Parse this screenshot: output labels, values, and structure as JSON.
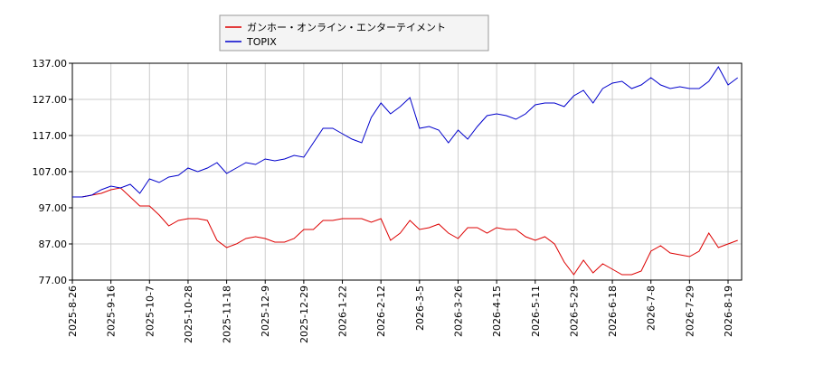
{
  "chart_data": {
    "type": "line",
    "categories": [
      "2025-8-26",
      null,
      null,
      null,
      "2025-9-16",
      null,
      null,
      null,
      "2025-10-7",
      null,
      null,
      null,
      "2025-10-28",
      null,
      null,
      null,
      "2025-11-18",
      null,
      null,
      null,
      "2025-12-9",
      null,
      null,
      null,
      "2025-12-29",
      null,
      null,
      null,
      "2026-1-22",
      null,
      null,
      null,
      "2026-2-12",
      null,
      null,
      null,
      "2026-3-5",
      null,
      null,
      null,
      "2026-3-26",
      null,
      null,
      null,
      "2026-4-15",
      null,
      null,
      null,
      "2026-5-11",
      null,
      null,
      null,
      "2026-5-29",
      null,
      null,
      null,
      "2026-6-18",
      null,
      null,
      null,
      "2026-7-8",
      null,
      null,
      null,
      "2026-7-29",
      null,
      null,
      null,
      "2026-8-19",
      null
    ],
    "series": [
      {
        "name": "ガンホー・オンライン・エンターテイメント",
        "color": "#dd0000",
        "values": [
          100,
          100,
          100.5,
          101,
          102,
          102.5,
          100,
          97.5,
          97.5,
          95,
          92,
          93.5,
          94,
          94,
          93.5,
          88,
          86,
          87,
          88.5,
          89,
          88.5,
          87.5,
          87.5,
          88.5,
          91,
          91,
          93.5,
          93.5,
          94,
          94,
          94,
          93,
          94,
          88,
          90,
          93.5,
          91,
          91.5,
          92.5,
          90,
          88.5,
          91.5,
          91.5,
          90,
          91.5,
          91,
          91,
          89,
          88,
          89,
          87,
          82,
          78.5,
          82.5,
          79,
          81.5,
          80,
          78.5,
          78.5,
          79.5,
          85,
          86.5,
          84.5,
          84,
          83.5,
          85,
          90,
          86,
          87,
          88
        ]
      },
      {
        "name": "TOPIX",
        "color": "#0000cc",
        "values": [
          100,
          100,
          100.5,
          102,
          103,
          102.5,
          103.5,
          101,
          105,
          104,
          105.5,
          106,
          108,
          107,
          108,
          109.5,
          106.5,
          108,
          109.5,
          109,
          110.5,
          110,
          110.5,
          111.5,
          111,
          115,
          119,
          119,
          117.5,
          116,
          115,
          122,
          126,
          123,
          125,
          127.5,
          119,
          119.5,
          118.5,
          115,
          118.5,
          116,
          119.5,
          122.5,
          123,
          122.5,
          121.5,
          123,
          125.5,
          126,
          126,
          125,
          128,
          129.5,
          126,
          130,
          131.5,
          132,
          130,
          131,
          133,
          131,
          130,
          130.5,
          130,
          130,
          132,
          136,
          131,
          133
        ]
      }
    ],
    "ylim": [
      77,
      137
    ],
    "yticks": [
      {
        "value": 77,
        "label": "77.00"
      },
      {
        "value": 87,
        "label": "87.00"
      },
      {
        "value": 97,
        "label": "97.00"
      },
      {
        "value": 107,
        "label": "107.00"
      },
      {
        "value": 117,
        "label": "117.00"
      },
      {
        "value": 127,
        "label": "127.00"
      },
      {
        "value": 137,
        "label": "137.00"
      }
    ],
    "grid": true
  }
}
